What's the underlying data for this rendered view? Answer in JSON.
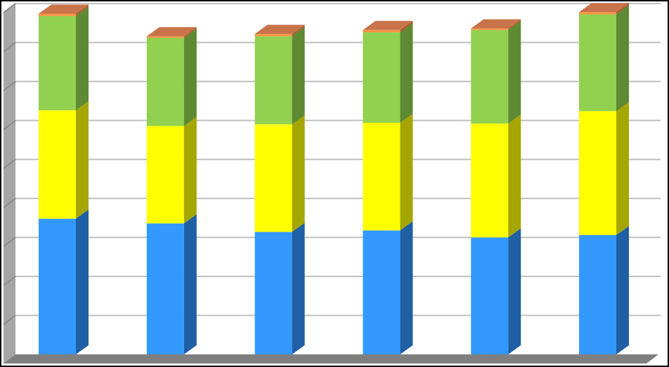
{
  "chart_data": {
    "type": "bar",
    "stacked": true,
    "three_d": true,
    "categories": [
      "",
      "",
      "",
      "",
      "",
      ""
    ],
    "series": [
      {
        "values": [
          174,
          168,
          157,
          159,
          150,
          153
        ]
      },
      {
        "values": [
          139,
          125,
          138,
          138,
          146,
          159
        ]
      },
      {
        "values": [
          121,
          113,
          113,
          116,
          120,
          124
        ]
      },
      {
        "values": [
          3,
          2,
          3,
          3,
          2,
          3
        ]
      }
    ],
    "ylim": [
      0,
      450
    ],
    "ytick_step": 50,
    "grid": true,
    "legend": "none",
    "colors": {
      "series_front": [
        "#3399FF",
        "#FFFF00",
        "#92D050",
        "#F79646"
      ],
      "series_side": [
        "#1F5FA3",
        "#A6A600",
        "#5E8A33",
        "#A65F2B"
      ],
      "series_top": [
        "#5FB0FF",
        "#FFFF66",
        "#B0DE80",
        "#C8734A"
      ],
      "background": "#FFFFFF",
      "gridline": "#BFBFBF",
      "wall": "#A6A6A6",
      "floor": "#7F7F7F"
    }
  }
}
